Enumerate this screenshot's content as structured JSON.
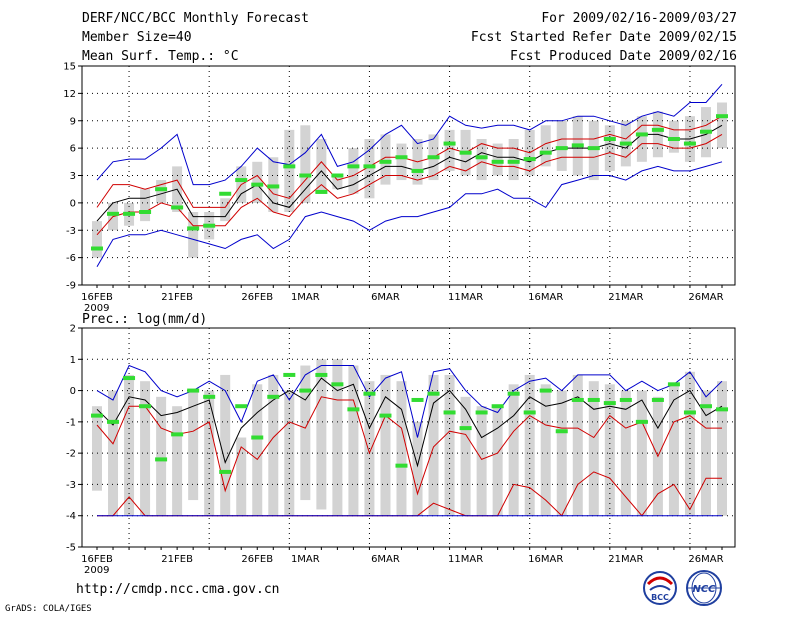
{
  "header": {
    "title": "DERF/NCC/BCC Monthly Forecast",
    "member_size": "Member Size=40",
    "variable": "Mean Surf. Temp.: °C",
    "period": "For 2009/02/16-2009/03/27",
    "refer_date": "Fcst Started Refer Date 2009/02/15",
    "produced_date": "Fcst Produced Date 2009/02/16"
  },
  "footer": {
    "url": "http://cmdp.ncc.cma.gov.cn",
    "credit": "GrADS: COLA/IGES"
  },
  "logos": {
    "bcc": "BCC",
    "ncc": "NCC"
  },
  "colors": {
    "box": "#d3d3d3",
    "mean": "#000000",
    "spread": "#d00000",
    "envelope": "#0000cc",
    "marker": "#32dc32",
    "grid": "#000000"
  },
  "chart_data": [
    {
      "type": "line",
      "title": "Mean Surf. Temp.: °C",
      "ylim": [
        -9,
        15
      ],
      "yticks": [
        -9,
        -6,
        -3,
        0,
        3,
        6,
        9,
        12,
        15
      ],
      "x_tick_labels": [
        {
          "day": 1,
          "label": "16FEB"
        },
        {
          "day": 6,
          "label": "21FEB"
        },
        {
          "day": 11,
          "label": "26FEB"
        },
        {
          "day": 14,
          "label": "1MAR"
        },
        {
          "day": 19,
          "label": "6MAR"
        },
        {
          "day": 24,
          "label": "11MAR"
        },
        {
          "day": 29,
          "label": "16MAR"
        },
        {
          "day": 34,
          "label": "21MAR"
        },
        {
          "day": 39,
          "label": "26MAR"
        }
      ],
      "year_label": "2009",
      "days": 40,
      "series": [
        {
          "name": "ensemble-max",
          "values": [
            2.5,
            4.5,
            4.8,
            4.8,
            6,
            7.5,
            2,
            2,
            2.5,
            4,
            6,
            4.5,
            4.2,
            5.5,
            7.5,
            4,
            4.5,
            5.8,
            7.5,
            8.5,
            6.5,
            7,
            9.5,
            8.5,
            8.2,
            8.5,
            8.5,
            8,
            9,
            9,
            9.5,
            9.5,
            9,
            8.5,
            9.5,
            10,
            9.5,
            11,
            11,
            13
          ]
        },
        {
          "name": "mean-plus-spread",
          "values": [
            -0.5,
            2,
            2,
            1.5,
            2,
            2.5,
            -0.5,
            -0.5,
            -0.5,
            2,
            3,
            1,
            0.5,
            2.5,
            4.5,
            2.5,
            3,
            4,
            5,
            5,
            4.5,
            5,
            6,
            5.5,
            6.5,
            6,
            6,
            5.5,
            6.5,
            7,
            7,
            7,
            7.5,
            7,
            8.5,
            8.5,
            8,
            8,
            8.5,
            9.5
          ]
        },
        {
          "name": "ensemble-mean",
          "values": [
            -2,
            0,
            0.5,
            0.5,
            1,
            1.5,
            -1.5,
            -1.5,
            -1.5,
            1,
            2,
            0,
            -0.5,
            1.5,
            3.5,
            1.5,
            2,
            3,
            4,
            4,
            3.5,
            4,
            5,
            4.5,
            5.5,
            5,
            5,
            4.5,
            5.5,
            6,
            6,
            6,
            6.5,
            6,
            7.5,
            7.5,
            7,
            7,
            7.5,
            8.5
          ]
        },
        {
          "name": "mean-minus-spread",
          "values": [
            -3.5,
            -1.5,
            -1,
            -1,
            0,
            -0.5,
            -2.5,
            -2.5,
            -2.5,
            -0.5,
            0.5,
            -1,
            -1.5,
            0.5,
            2,
            0.5,
            1,
            2,
            3,
            3,
            2.5,
            3,
            4,
            3.5,
            4.5,
            4,
            4,
            3.5,
            4.5,
            5,
            5,
            5,
            5.5,
            5,
            6.5,
            6.5,
            6,
            6,
            6.5,
            7.5
          ]
        },
        {
          "name": "ensemble-min",
          "values": [
            -7,
            -4,
            -3.5,
            -3.5,
            -3,
            -3.5,
            -4,
            -4.5,
            -5,
            -4,
            -3.5,
            -5,
            -4,
            -1.5,
            -1,
            -1.5,
            -2,
            -3,
            -2,
            -1.5,
            -1.5,
            -1,
            -0.5,
            1,
            1,
            1.5,
            0.5,
            0.5,
            -0.5,
            2,
            2.5,
            3,
            3,
            2.5,
            3.5,
            4,
            3.5,
            3.5,
            4,
            4.5
          ]
        },
        {
          "name": "green-marker",
          "values": [
            -5,
            -1.2,
            -1.2,
            -1,
            1.5,
            -0.5,
            -2.8,
            -2.5,
            1,
            2.5,
            2,
            1.8,
            4,
            3,
            1.2,
            3,
            4,
            4,
            4.5,
            5,
            3.5,
            5,
            6.5,
            5.5,
            5,
            4.5,
            4.5,
            4.8,
            5.5,
            6,
            6.3,
            6,
            7,
            6.5,
            7.5,
            8,
            7,
            6.5,
            7.8,
            9.5
          ]
        }
      ],
      "box_bounds": {
        "upper": [
          -2,
          0,
          0,
          1.5,
          2.5,
          4,
          -1,
          -1,
          0.5,
          4,
          4.5,
          5,
          8,
          8.5,
          7,
          3,
          6,
          7,
          7.5,
          6.5,
          7,
          7.5,
          8,
          8,
          7,
          6.5,
          7,
          8,
          8.5,
          9,
          9.5,
          9,
          8.5,
          9,
          9.5,
          10,
          9,
          9.5,
          10.5,
          11
        ],
        "lower": [
          -6,
          -3,
          -2.5,
          -2,
          0,
          -1,
          -6,
          -4,
          -2,
          0,
          0,
          -1,
          -1,
          0,
          1,
          1.5,
          1,
          0.5,
          2,
          2.5,
          2,
          2.5,
          3.5,
          3,
          2.5,
          3,
          2.5,
          3,
          4,
          3.5,
          3,
          2.5,
          3.5,
          4,
          4.5,
          5,
          5.5,
          4.5,
          5,
          6
        ]
      }
    },
    {
      "type": "line",
      "title": "Prec.: log(mm/d)",
      "ylim": [
        -5,
        2
      ],
      "yticks": [
        -5,
        -4,
        -3,
        -2,
        -1,
        0,
        1,
        2
      ],
      "x_tick_labels": [
        {
          "day": 1,
          "label": "16FEB"
        },
        {
          "day": 6,
          "label": "21FEB"
        },
        {
          "day": 11,
          "label": "26FEB"
        },
        {
          "day": 14,
          "label": "1MAR"
        },
        {
          "day": 19,
          "label": "6MAR"
        },
        {
          "day": 24,
          "label": "11MAR"
        },
        {
          "day": 29,
          "label": "16MAR"
        },
        {
          "day": 34,
          "label": "21MAR"
        },
        {
          "day": 39,
          "label": "26MAR"
        }
      ],
      "year_label": "2009",
      "days": 40,
      "series": [
        {
          "name": "ensemble-max",
          "values": [
            0,
            -0.3,
            0.8,
            0.6,
            0,
            -0.2,
            0,
            0.3,
            0,
            -1,
            0.3,
            0.5,
            -0.3,
            0.5,
            0.8,
            0.8,
            0.8,
            -0.2,
            0.4,
            0.6,
            -1.5,
            0.6,
            0.7,
            0,
            -0.5,
            -0.7,
            0,
            0.3,
            0.4,
            0,
            0.5,
            0.5,
            0.5,
            0,
            0.3,
            0,
            0.2,
            0.6,
            -0.2,
            0.3
          ]
        },
        {
          "name": "ensemble-mean",
          "values": [
            -0.6,
            -1.1,
            -0.2,
            -0.3,
            -0.8,
            -0.7,
            -0.5,
            -0.3,
            -2.3,
            -1.2,
            -0.7,
            -0.3,
            0,
            -0.3,
            0.4,
            0,
            0.2,
            -1.2,
            -0.2,
            -0.6,
            -2.4,
            -0.4,
            0,
            -0.6,
            -1.5,
            -1.2,
            -0.8,
            -0.2,
            -0.5,
            -0.4,
            -0.2,
            -0.6,
            -0.5,
            -0.6,
            -0.3,
            -1.2,
            -0.3,
            0,
            -0.8,
            -0.5
          ]
        },
        {
          "name": "upper-red",
          "values": [
            -1.1,
            -1.7,
            -0.5,
            -0.5,
            -1.2,
            -1.4,
            -1.3,
            -1,
            -3.2,
            -1.8,
            -2.2,
            -1.5,
            -1,
            -1.2,
            -0.2,
            -0.3,
            -0.3,
            -2,
            -0.8,
            -1.2,
            -3.3,
            -1.8,
            -1.3,
            -1.4,
            -2.2,
            -2,
            -1.3,
            -0.8,
            -1.1,
            -1.2,
            -1.2,
            -1.5,
            -0.8,
            -1.2,
            -1,
            -2.1,
            -1,
            -0.8,
            -1.2,
            -1.2
          ]
        },
        {
          "name": "lower-red",
          "values": [
            -4,
            -4,
            -3.4,
            -4,
            -4,
            -4,
            -4,
            -4,
            -4,
            -4,
            -4,
            -4,
            -4,
            -4,
            -4,
            -4,
            -4,
            -4,
            -4,
            -4,
            -4,
            -3.6,
            -3.8,
            -4,
            -4,
            -4,
            -3.0,
            -3.1,
            -3.5,
            -4,
            -3.0,
            -2.6,
            -2.8,
            -3.4,
            -4,
            -3.3,
            -3.0,
            -3.8,
            -2.8,
            -2.8
          ]
        },
        {
          "name": "floor",
          "values": [
            -4,
            -4,
            -4,
            -4,
            -4,
            -4,
            -4,
            -4,
            -4,
            -4,
            -4,
            -4,
            -4,
            -4,
            -4,
            -4,
            -4,
            -4,
            -4,
            -4,
            -4,
            -4,
            -4,
            -4,
            -4,
            -4,
            -4,
            -4,
            -4,
            -4,
            -4,
            -4,
            -4,
            -4,
            -4,
            -4,
            -4,
            -4,
            -4,
            -4
          ]
        },
        {
          "name": "green-marker",
          "values": [
            -0.8,
            -1,
            0.4,
            -0.5,
            -2.2,
            -1.4,
            0,
            -0.2,
            -2.6,
            -0.5,
            -1.5,
            -0.2,
            0.5,
            0,
            0.5,
            0.2,
            -0.6,
            -0.1,
            -0.8,
            -2.4,
            -0.3,
            -0.1,
            -0.7,
            -1.2,
            -0.7,
            -0.5,
            -0.1,
            -0.7,
            0,
            -1.3,
            -0.3,
            -0.3,
            -0.4,
            -0.3,
            -1,
            -0.3,
            0.2,
            -0.7,
            -0.5,
            -0.6
          ]
        }
      ],
      "box_bounds": {
        "upper": [
          -0.5,
          0,
          0.5,
          0.3,
          -0.2,
          -0.5,
          0,
          0,
          0.5,
          -1.5,
          0.2,
          0.5,
          0,
          0.8,
          1,
          1,
          0.8,
          0.3,
          0.5,
          0.3,
          -1,
          0.5,
          0.5,
          -0.2,
          -0.5,
          -0.5,
          0.2,
          0.5,
          0.2,
          0,
          0.5,
          0.3,
          0.2,
          0,
          0,
          -0.2,
          0.2,
          0.6,
          0,
          0.3
        ],
        "lower": [
          -3.2,
          -4,
          -4,
          -4,
          -4,
          -4,
          -3.5,
          -4,
          -4,
          -4,
          -4,
          -4,
          -4,
          -3.5,
          -3.8,
          -4,
          -4,
          -4,
          -4,
          -4,
          -4,
          -4,
          -4,
          -4,
          -4,
          -4,
          -4,
          -4,
          -4,
          -4,
          -4,
          -4,
          -4,
          -4,
          -4,
          -4,
          -4,
          -4,
          -4,
          -4
        ]
      }
    }
  ]
}
